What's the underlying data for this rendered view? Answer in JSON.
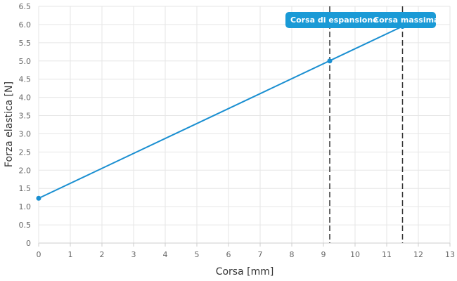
{
  "chart_data": {
    "type": "line",
    "xlabel": "Corsa [mm]",
    "ylabel": "Forza elastica [N]",
    "xlim": [
      0,
      13
    ],
    "ylim": [
      0,
      6.5
    ],
    "x_ticks": [
      "0",
      "1",
      "2",
      "3",
      "4",
      "5",
      "6",
      "7",
      "8",
      "9",
      "10",
      "11",
      "12",
      "13"
    ],
    "y_ticks": [
      "0",
      "0.5",
      "1.0",
      "1.5",
      "2.0",
      "2.5",
      "3.0",
      "3.5",
      "4.0",
      "4.5",
      "5.0",
      "5.5",
      "6.0",
      "6.5"
    ],
    "grid": true,
    "colors": {
      "line": "#1a8fd1",
      "callout": "#1a9ad6",
      "reference": "#333333"
    },
    "series": [
      {
        "x": [
          0,
          11.5
        ],
        "y": [
          1.23,
          5.95
        ]
      }
    ],
    "markers": [
      {
        "x": 0,
        "y": 1.23
      },
      {
        "x": 9.2,
        "y": 5.0
      },
      {
        "x": 11.5,
        "y": 5.95
      }
    ],
    "reference_lines": [
      {
        "x": 9.2,
        "label": "Corsa di espansione"
      },
      {
        "x": 11.5,
        "label": "Corsa massima"
      }
    ]
  }
}
